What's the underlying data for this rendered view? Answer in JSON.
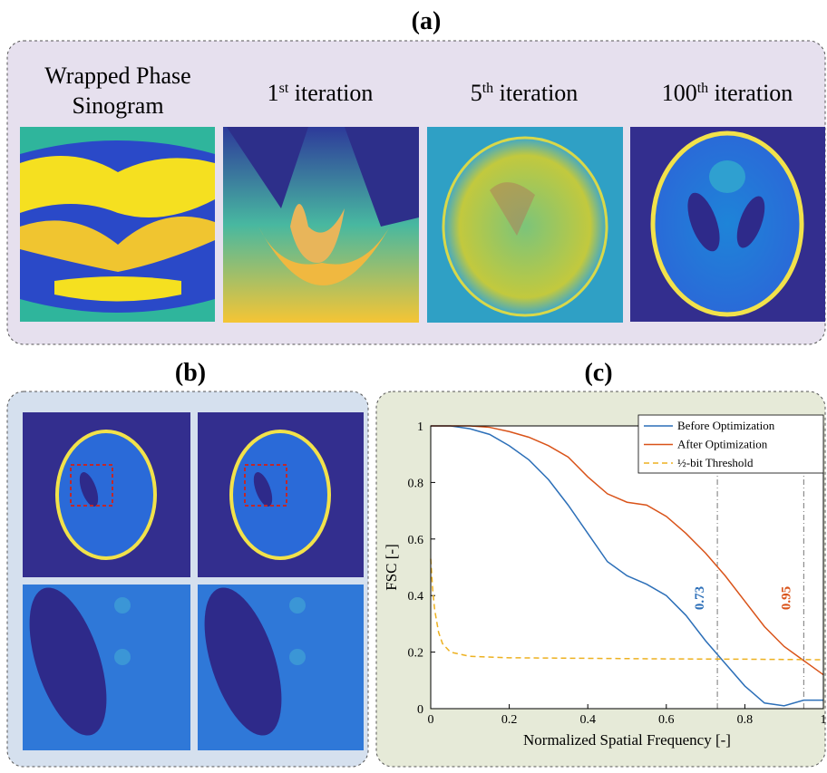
{
  "figure": {
    "panel_a": {
      "label": "(a)",
      "captions": [
        {
          "lines": [
            "Wrapped Phase",
            "Sinogram"
          ]
        },
        {
          "base": "1",
          "sup": "st",
          "rest": " iteration"
        },
        {
          "base": "5",
          "sup": "th",
          "rest": " iteration"
        },
        {
          "base": "100",
          "sup": "th",
          "rest": " iteration"
        }
      ]
    },
    "panel_b": {
      "label": "(b)"
    },
    "panel_c": {
      "label": "(c)"
    }
  },
  "chart_data": {
    "type": "line",
    "xlabel": "Normalized Spatial Frequency [-]",
    "ylabel": "FSC [-]",
    "xlim": [
      0,
      1
    ],
    "ylim": [
      0,
      1
    ],
    "xticks": [
      0,
      0.2,
      0.4,
      0.6,
      0.8,
      1
    ],
    "yticks": [
      0,
      0.2,
      0.4,
      0.6,
      0.8,
      1
    ],
    "legend": "upper right",
    "series": [
      {
        "name": "Before Optimization",
        "color": "#2c6fb8",
        "style": "solid",
        "x": [
          0,
          0.05,
          0.1,
          0.15,
          0.2,
          0.25,
          0.3,
          0.35,
          0.4,
          0.45,
          0.5,
          0.55,
          0.6,
          0.65,
          0.7,
          0.75,
          0.8,
          0.85,
          0.9,
          0.95,
          1
        ],
        "values": [
          1,
          1,
          0.99,
          0.97,
          0.93,
          0.88,
          0.81,
          0.72,
          0.62,
          0.52,
          0.47,
          0.44,
          0.4,
          0.33,
          0.24,
          0.16,
          0.08,
          0.02,
          0.01,
          0.03,
          0.03
        ]
      },
      {
        "name": "After Optimization",
        "color": "#d95319",
        "style": "solid",
        "x": [
          0,
          0.05,
          0.1,
          0.15,
          0.2,
          0.25,
          0.3,
          0.35,
          0.4,
          0.45,
          0.5,
          0.55,
          0.6,
          0.65,
          0.7,
          0.75,
          0.8,
          0.85,
          0.9,
          0.95,
          1
        ],
        "values": [
          1,
          1,
          1,
          0.995,
          0.98,
          0.96,
          0.93,
          0.89,
          0.82,
          0.76,
          0.73,
          0.72,
          0.68,
          0.62,
          0.55,
          0.47,
          0.38,
          0.29,
          0.22,
          0.17,
          0.12
        ]
      },
      {
        "name": "½-bit Threshold",
        "color": "#edb120",
        "style": "dashed",
        "x": [
          0,
          0.005,
          0.01,
          0.02,
          0.03,
          0.05,
          0.1,
          0.2,
          0.4,
          0.6,
          0.8,
          1
        ],
        "values": [
          0.53,
          0.42,
          0.35,
          0.27,
          0.23,
          0.2,
          0.185,
          0.18,
          0.178,
          0.176,
          0.175,
          0.173
        ]
      }
    ],
    "markers": [
      {
        "x": 0.73,
        "color": "#2c6fb8"
      },
      {
        "x": 0.95,
        "color": "#d95319"
      }
    ]
  }
}
